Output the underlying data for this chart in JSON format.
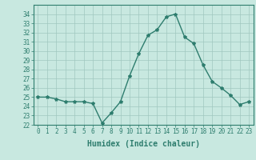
{
  "x": [
    0,
    1,
    2,
    3,
    4,
    5,
    6,
    7,
    8,
    9,
    10,
    11,
    12,
    13,
    14,
    15,
    16,
    17,
    18,
    19,
    20,
    21,
    22,
    23
  ],
  "y": [
    25.0,
    25.0,
    24.8,
    24.5,
    24.5,
    24.5,
    24.3,
    22.2,
    23.3,
    24.5,
    27.3,
    29.7,
    31.7,
    32.3,
    33.7,
    34.0,
    31.5,
    30.8,
    28.5,
    26.7,
    26.0,
    25.2,
    24.2,
    24.5
  ],
  "line_color": "#2e7d6e",
  "marker": "*",
  "marker_size": 3,
  "bg_color": "#c8e8e0",
  "grid_color": "#a0c8c0",
  "xlabel": "Humidex (Indice chaleur)",
  "ylim": [
    22,
    35
  ],
  "xlim": [
    -0.5,
    23.5
  ],
  "yticks": [
    22,
    23,
    24,
    25,
    26,
    27,
    28,
    29,
    30,
    31,
    32,
    33,
    34
  ],
  "xticks": [
    0,
    1,
    2,
    3,
    4,
    5,
    6,
    7,
    8,
    9,
    10,
    11,
    12,
    13,
    14,
    15,
    16,
    17,
    18,
    19,
    20,
    21,
    22,
    23
  ],
  "tick_fontsize": 5.5,
  "xlabel_fontsize": 7,
  "line_width": 1.0
}
